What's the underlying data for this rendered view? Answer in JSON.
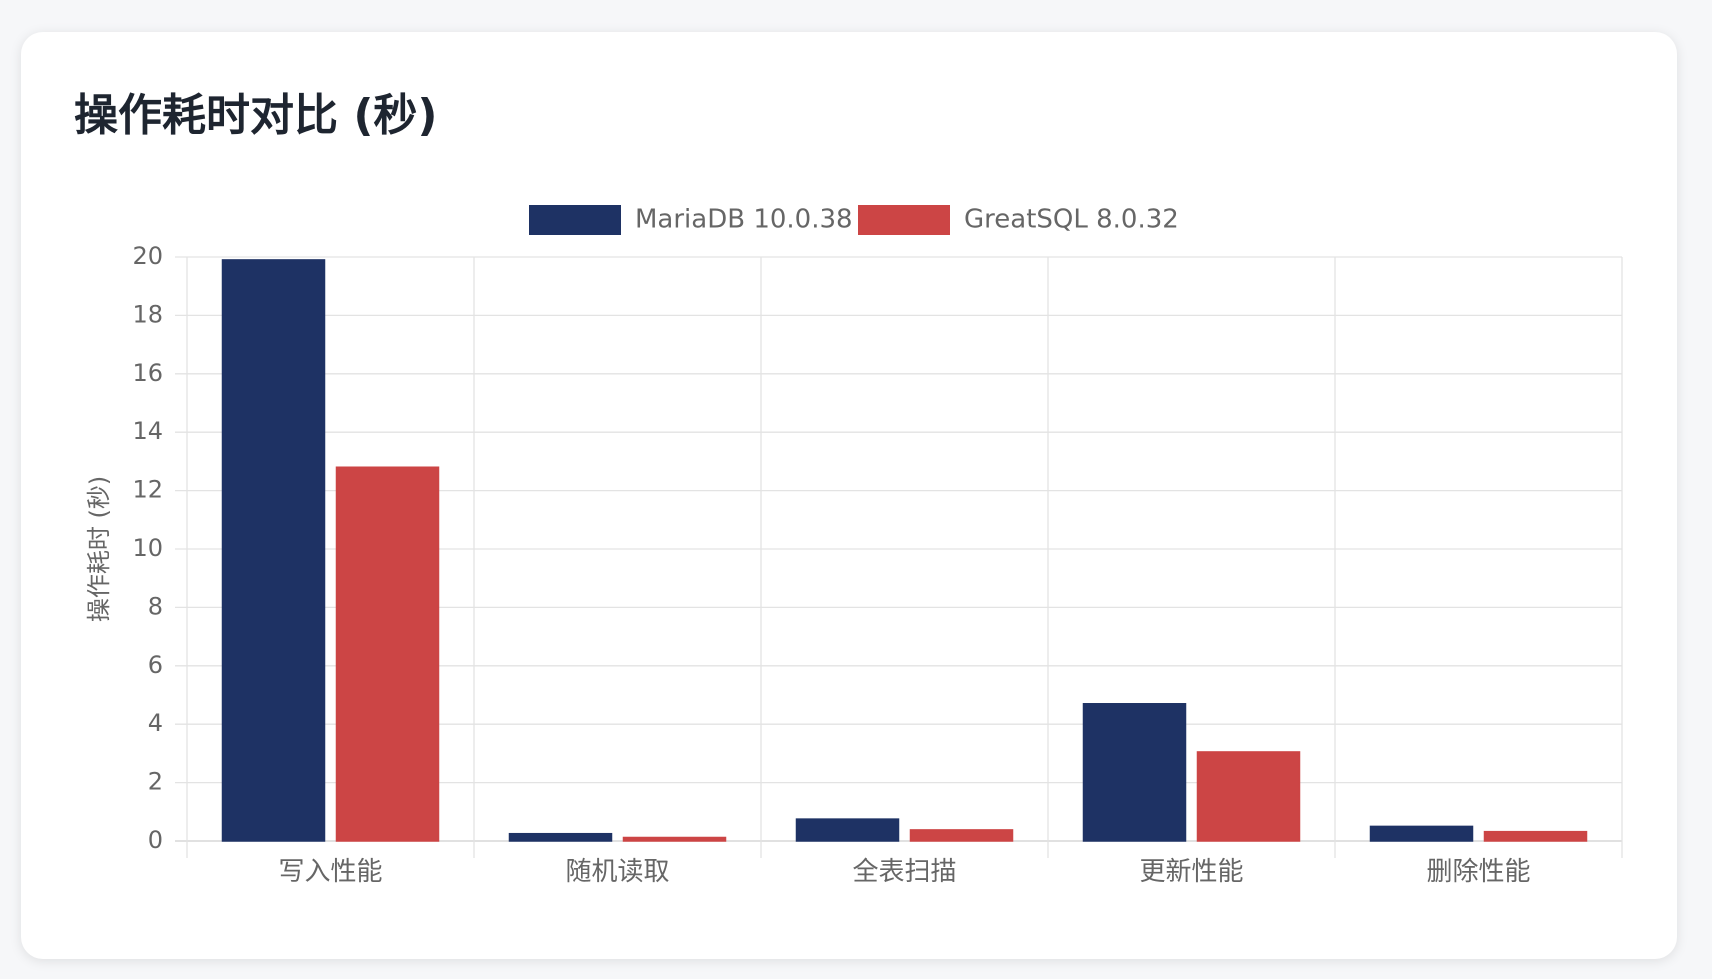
{
  "page": {
    "title": "操作耗时对比 (秒)"
  },
  "colors": {
    "mariadb": "#1e3264",
    "greatsql": "#cc4545",
    "grid": "#e3e3e3",
    "axis_text": "#666666"
  },
  "chart_data": {
    "type": "bar",
    "title": "操作耗时对比 (秒)",
    "xlabel": "",
    "ylabel": "操作耗时 (秒)",
    "categories": [
      "写入性能",
      "随机读取",
      "全表扫描",
      "更新性能",
      "删除性能"
    ],
    "series": [
      {
        "name": "MariaDB 10.0.38",
        "color": "#1e3264",
        "values": [
          19.9,
          0.25,
          0.75,
          4.7,
          0.5
        ]
      },
      {
        "name": "GreatSQL 8.0.32",
        "color": "#cc4545",
        "values": [
          12.8,
          0.12,
          0.38,
          3.05,
          0.32
        ]
      }
    ],
    "ylim": [
      0,
      20
    ],
    "yticks": [
      0,
      2,
      4,
      6,
      8,
      10,
      12,
      14,
      16,
      18,
      20
    ],
    "grid": true,
    "legend_position": "top-center"
  }
}
